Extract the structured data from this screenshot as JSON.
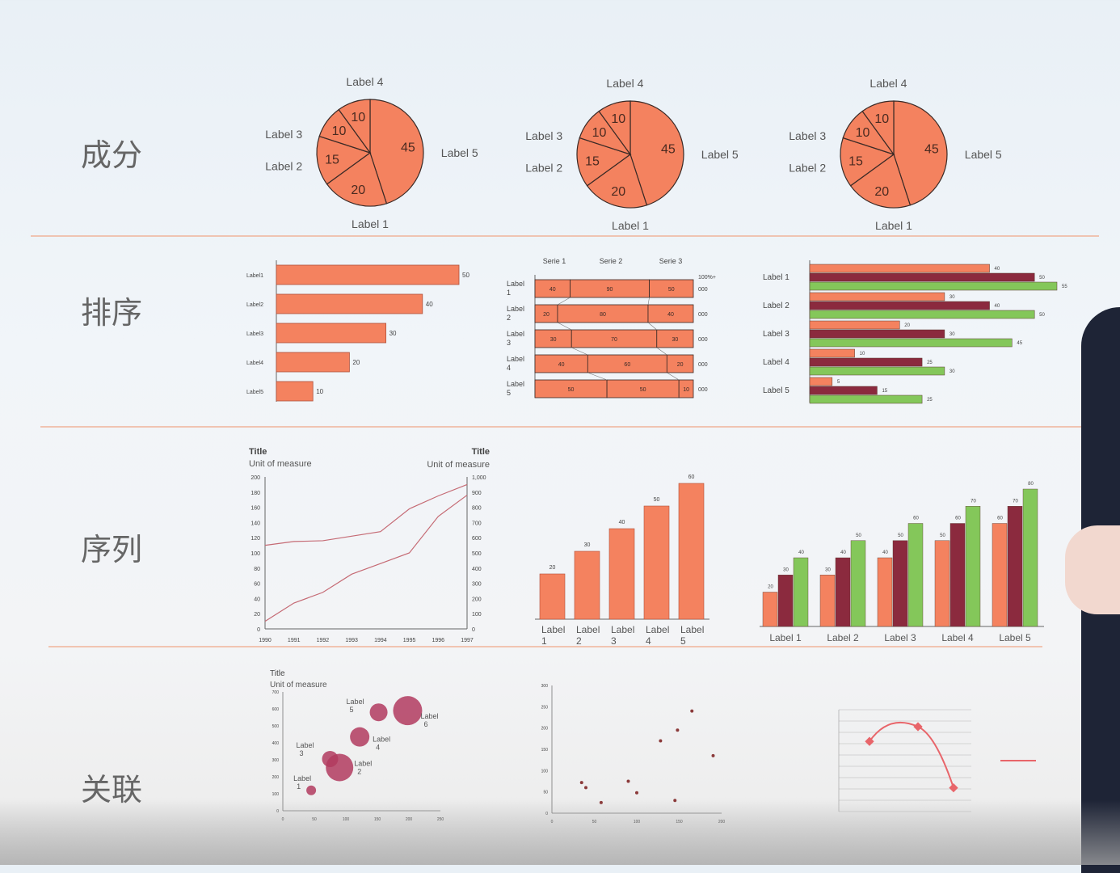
{
  "sections": [
    {
      "label": "成分"
    },
    {
      "label": "排序"
    },
    {
      "label": "序列"
    },
    {
      "label": "关联"
    }
  ],
  "colors": {
    "orange": "#f4825f",
    "maroon": "#8b2a3e",
    "green": "#84c75a",
    "divider": "#f0a888",
    "bubble": "#b23b5f"
  },
  "chart_data": [
    {
      "type": "pie",
      "categories": [
        "Label 1",
        "Label 2",
        "Label 3",
        "Label 4",
        "Label 5"
      ],
      "values": [
        20,
        15,
        10,
        10,
        45
      ]
    },
    {
      "type": "pie",
      "categories": [
        "Label 1",
        "Label 2",
        "Label 3",
        "Label 4",
        "Label 5"
      ],
      "values": [
        20,
        15,
        10,
        10,
        45
      ]
    },
    {
      "type": "pie",
      "categories": [
        "Label 1",
        "Label 2",
        "Label 3",
        "Label 4",
        "Label 5"
      ],
      "values": [
        20,
        15,
        10,
        10,
        45
      ]
    },
    {
      "type": "bar",
      "orientation": "horizontal",
      "categories": [
        "Label1",
        "Label2",
        "Label3",
        "Label4",
        "Label5"
      ],
      "values": [
        50,
        40,
        30,
        20,
        10
      ]
    },
    {
      "type": "bar",
      "orientation": "horizontal",
      "stacked": "100%",
      "categories": [
        "Label 1",
        "Label 2",
        "Label 3",
        "Label 4",
        "Label 5"
      ],
      "series": [
        {
          "name": "Serie 1",
          "values": [
            40,
            20,
            30,
            40,
            50
          ]
        },
        {
          "name": "Serie 2",
          "values": [
            90,
            80,
            70,
            60,
            50
          ]
        },
        {
          "name": "Serie 3",
          "values": [
            50,
            40,
            30,
            20,
            10
          ]
        }
      ],
      "top_axis_label": "100%+",
      "row_end_label": "000"
    },
    {
      "type": "bar",
      "orientation": "horizontal",
      "categories": [
        "Label 1",
        "Label 2",
        "Label 3",
        "Label 4",
        "Label 5"
      ],
      "series": [
        {
          "values": [
            40,
            30,
            20,
            10,
            5
          ]
        },
        {
          "values": [
            50,
            40,
            30,
            25,
            15
          ]
        },
        {
          "values": [
            55,
            50,
            45,
            30,
            25
          ]
        }
      ]
    },
    {
      "type": "line",
      "title": "Title",
      "ylabel": "Unit of measure",
      "title_right": "Title",
      "ylabel_right": "Unit of measure",
      "x": [
        1990,
        1991,
        1992,
        1993,
        1994,
        1995,
        1996,
        1997
      ],
      "ylim": [
        0,
        200
      ],
      "y_ticks": [
        0,
        20,
        40,
        60,
        80,
        100,
        120,
        140,
        160,
        180,
        200
      ],
      "ylim_right": [
        0,
        1000
      ],
      "y_ticks_right": [
        "0",
        "100",
        "200",
        "300",
        "400",
        "500",
        "600",
        "700",
        "800",
        "900",
        "1,000"
      ],
      "series": [
        {
          "axis": "left",
          "values": [
            110,
            115,
            116,
            122,
            128,
            158,
            175,
            190
          ]
        },
        {
          "axis": "right",
          "values": [
            50,
            170,
            240,
            360,
            430,
            500,
            740,
            880
          ]
        }
      ]
    },
    {
      "type": "bar",
      "categories": [
        "Label 1",
        "Label 2",
        "Label 3",
        "Label 4",
        "Label 5"
      ],
      "values": [
        20,
        30,
        40,
        50,
        60
      ],
      "ylim": [
        0,
        60
      ]
    },
    {
      "type": "bar",
      "categories": [
        "Label 1",
        "Label 2",
        "Label 3",
        "Label 4",
        "Label 5"
      ],
      "series": [
        {
          "values": [
            20,
            30,
            40,
            50,
            60
          ]
        },
        {
          "values": [
            30,
            40,
            50,
            60,
            70
          ]
        },
        {
          "values": [
            40,
            50,
            60,
            70,
            80
          ]
        }
      ],
      "ylim": [
        0,
        80
      ]
    },
    {
      "type": "scatter",
      "variant": "bubble",
      "title": "Title",
      "ylabel": "Unit of measure",
      "xlim": [
        0,
        250
      ],
      "ylim": [
        0,
        700
      ],
      "x_ticks": [
        0,
        50,
        100,
        150,
        200,
        250
      ],
      "y_ticks": [
        0,
        100,
        200,
        300,
        400,
        500,
        600,
        700
      ],
      "points": [
        {
          "label": "Label 1",
          "x": 45,
          "y": 120,
          "size": 6
        },
        {
          "label": "Label 2",
          "x": 90,
          "y": 255,
          "size": 17
        },
        {
          "label": "Label 3",
          "x": 75,
          "y": 305,
          "size": 10
        },
        {
          "label": "Label 4",
          "x": 122,
          "y": 435,
          "size": 12
        },
        {
          "label": "Label 5",
          "x": 152,
          "y": 580,
          "size": 11
        },
        {
          "label": "Label 6",
          "x": 198,
          "y": 590,
          "size": 18
        }
      ]
    },
    {
      "type": "scatter",
      "xlim": [
        0,
        200
      ],
      "ylim": [
        0,
        300
      ],
      "x_ticks": [
        0,
        50,
        100,
        150,
        200
      ],
      "y_ticks": [
        0,
        50,
        100,
        150,
        200,
        250,
        300
      ],
      "points": [
        {
          "x": 35,
          "y": 72
        },
        {
          "x": 40,
          "y": 60
        },
        {
          "x": 58,
          "y": 25
        },
        {
          "x": 90,
          "y": 75
        },
        {
          "x": 100,
          "y": 48
        },
        {
          "x": 128,
          "y": 170
        },
        {
          "x": 145,
          "y": 30
        },
        {
          "x": 148,
          "y": 195
        },
        {
          "x": 165,
          "y": 240
        },
        {
          "x": 190,
          "y": 135
        }
      ]
    },
    {
      "type": "line",
      "series": [
        {
          "values": [
            6.2,
            7.5,
            2.1
          ]
        }
      ],
      "ylim": [
        0,
        9
      ],
      "gridlines": 9
    }
  ]
}
